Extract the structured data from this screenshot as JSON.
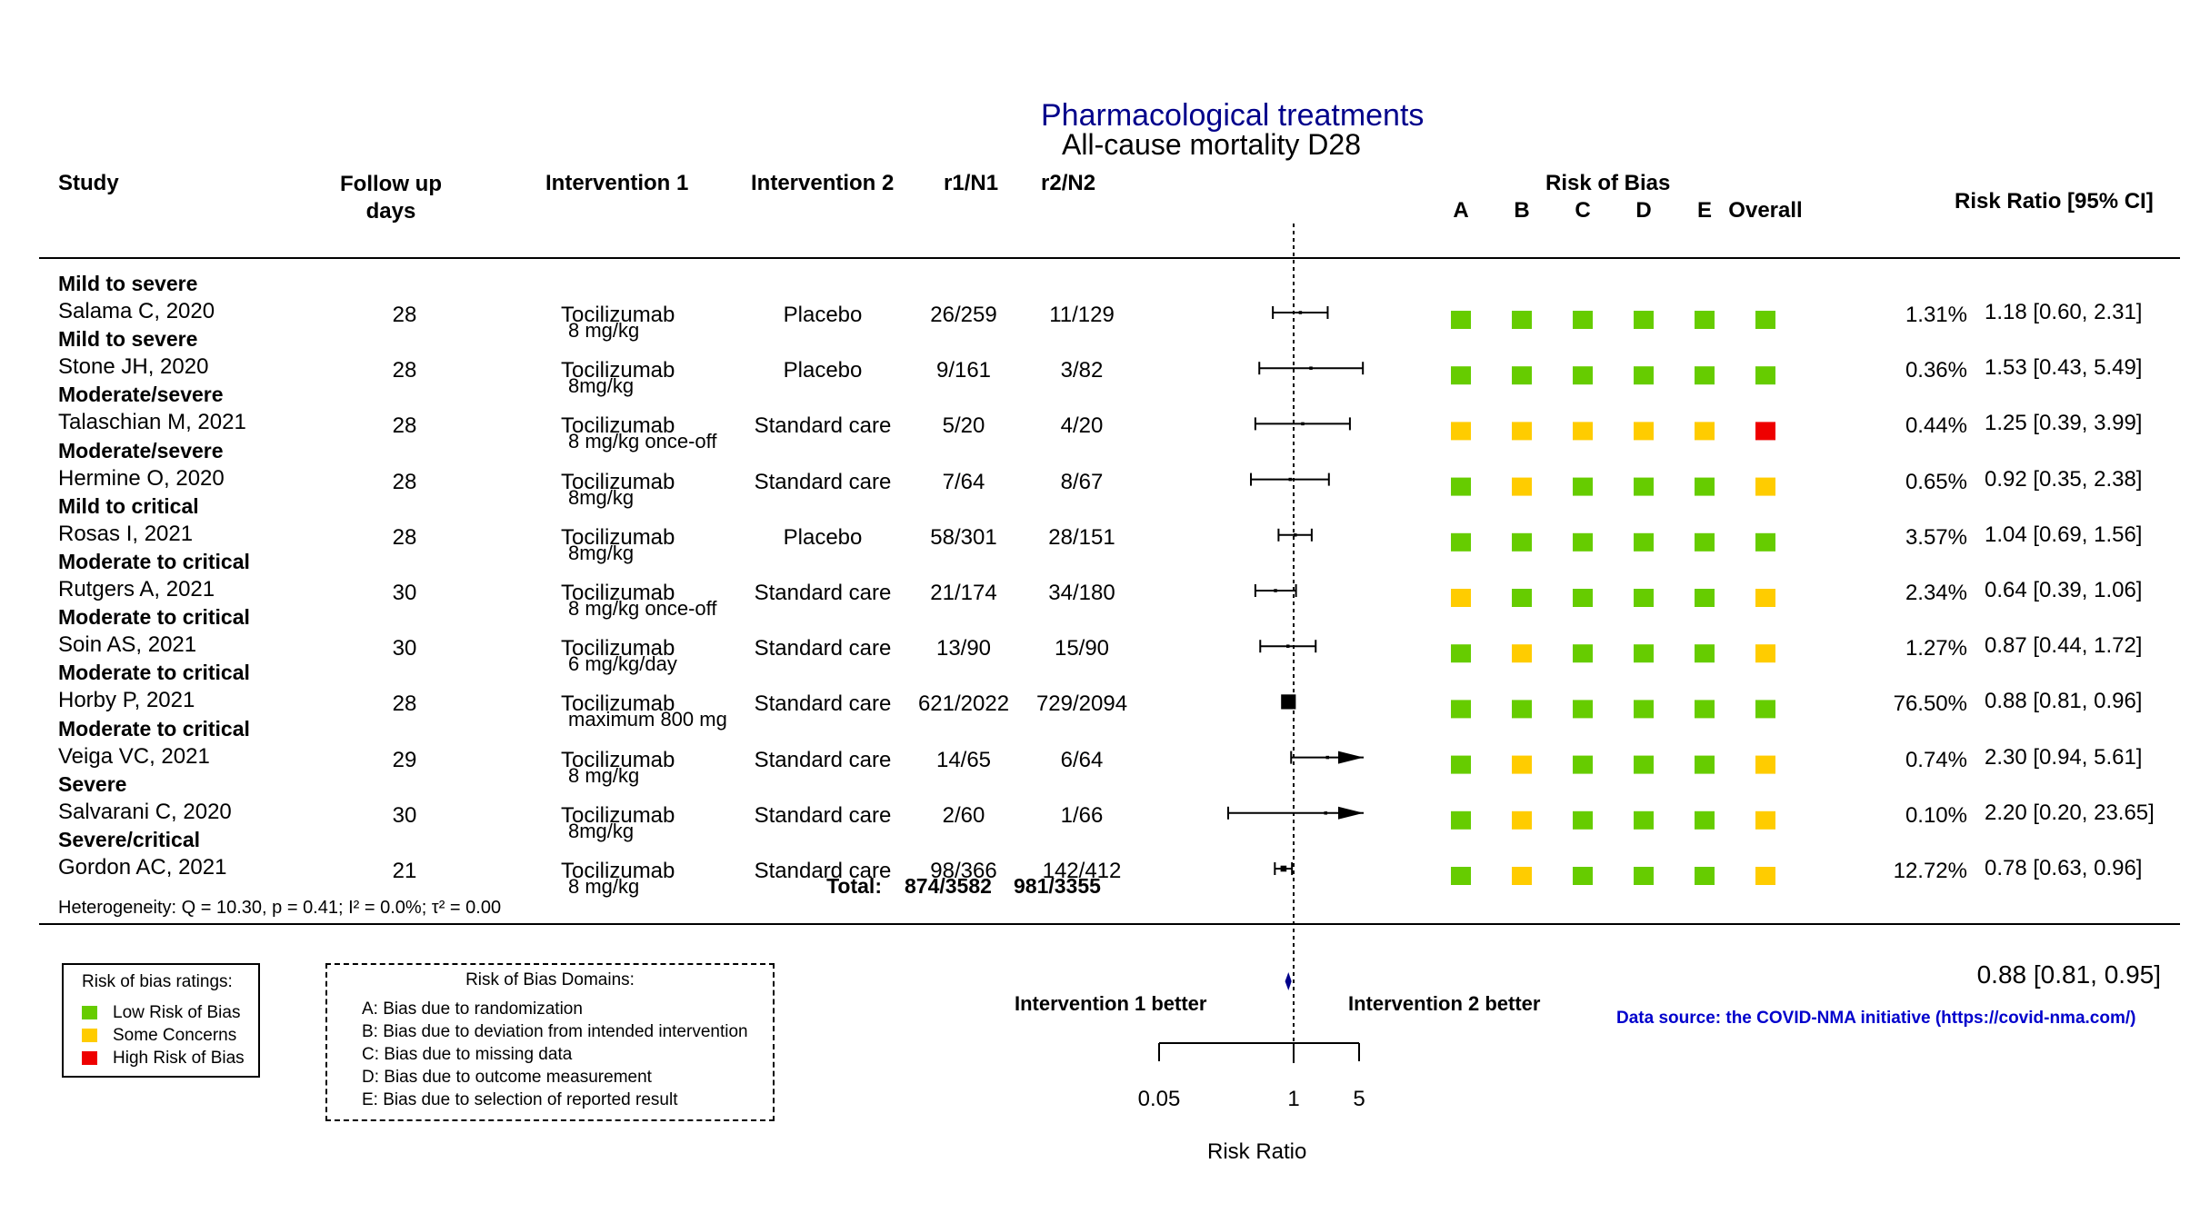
{
  "chart_data": {
    "type": "forest",
    "title": "Pharmacological treatments",
    "subtitle": "All-cause mortality D28",
    "columns": {
      "study": "Study",
      "followup": "Follow up\ndays",
      "int1": "Intervention 1",
      "int2": "Intervention 2",
      "r1": "r1/N1",
      "r2": "r2/N2",
      "rob": "Risk of Bias",
      "rob_domains": [
        "A",
        "B",
        "C",
        "D",
        "E",
        "Overall"
      ],
      "rr": "Risk Ratio [95% CI]"
    },
    "studies": [
      {
        "group": "Mild to severe",
        "study": "Salama C, 2020",
        "followup": "28",
        "int1": "Tocilizumab",
        "dose": "8 mg/kg",
        "int2": "Placebo",
        "r1": "26/259",
        "r2": "11/129",
        "rob": [
          "low",
          "low",
          "low",
          "low",
          "low",
          "low"
        ],
        "weight": "1.31%",
        "rr_text": "1.18 [0.60,  2.31]",
        "rr": 1.18,
        "lo": 0.6,
        "hi": 2.31
      },
      {
        "group": "Mild to severe",
        "study": "Stone JH, 2020",
        "followup": "28",
        "int1": "Tocilizumab",
        "dose": "8mg/kg",
        "int2": "Placebo",
        "r1": "9/161",
        "r2": "3/82",
        "rob": [
          "low",
          "low",
          "low",
          "low",
          "low",
          "low"
        ],
        "weight": "0.36%",
        "rr_text": "1.53 [0.43,  5.49]",
        "rr": 1.53,
        "lo": 0.43,
        "hi": 5.49
      },
      {
        "group": "Moderate/severe",
        "study": "Talaschian M, 2021",
        "followup": "28",
        "int1": "Tocilizumab",
        "dose": "8 mg/kg once-off",
        "int2": "Standard care",
        "r1": "5/20",
        "r2": "4/20",
        "rob": [
          "some",
          "some",
          "some",
          "some",
          "some",
          "high"
        ],
        "weight": "0.44%",
        "rr_text": "1.25 [0.39,  3.99]",
        "rr": 1.25,
        "lo": 0.39,
        "hi": 3.99
      },
      {
        "group": "Moderate/severe",
        "study": "Hermine O, 2020",
        "followup": "28",
        "int1": "Tocilizumab",
        "dose": "8mg/kg",
        "int2": "Standard care",
        "r1": "7/64",
        "r2": "8/67",
        "rob": [
          "low",
          "some",
          "low",
          "low",
          "low",
          "some"
        ],
        "weight": "0.65%",
        "rr_text": "0.92 [0.35,  2.38]",
        "rr": 0.92,
        "lo": 0.35,
        "hi": 2.38
      },
      {
        "group": "Mild to critical",
        "study": "Rosas I, 2021",
        "followup": "28",
        "int1": "Tocilizumab",
        "dose": "8mg/kg",
        "int2": "Placebo",
        "r1": "58/301",
        "r2": "28/151",
        "rob": [
          "low",
          "low",
          "low",
          "low",
          "low",
          "low"
        ],
        "weight": "3.57%",
        "rr_text": "1.04 [0.69,  1.56]",
        "rr": 1.04,
        "lo": 0.69,
        "hi": 1.56
      },
      {
        "group": "Moderate to critical",
        "study": "Rutgers A, 2021",
        "followup": "30",
        "int1": "Tocilizumab",
        "dose": "8 mg/kg once-off",
        "int2": "Standard care",
        "r1": "21/174",
        "r2": "34/180",
        "rob": [
          "some",
          "low",
          "low",
          "low",
          "low",
          "some"
        ],
        "weight": "2.34%",
        "rr_text": "0.64 [0.39,  1.06]",
        "rr": 0.64,
        "lo": 0.39,
        "hi": 1.06
      },
      {
        "group": "Moderate to critical",
        "study": "Soin AS, 2021",
        "followup": "30",
        "int1": "Tocilizumab",
        "dose": "6 mg/kg/day",
        "int2": "Standard care",
        "r1": "13/90",
        "r2": "15/90",
        "rob": [
          "low",
          "some",
          "low",
          "low",
          "low",
          "some"
        ],
        "weight": "1.27%",
        "rr_text": "0.87 [0.44,  1.72]",
        "rr": 0.87,
        "lo": 0.44,
        "hi": 1.72
      },
      {
        "group": "Moderate to critical",
        "study": "Horby P, 2021",
        "followup": "28",
        "int1": "Tocilizumab",
        "dose": "maximum 800 mg",
        "int2": "Standard care",
        "r1": "621/2022",
        "r2": "729/2094",
        "rob": [
          "low",
          "low",
          "low",
          "low",
          "low",
          "low"
        ],
        "weight": "76.50%",
        "rr_text": "0.88 [0.81,  0.96]",
        "rr": 0.88,
        "lo": 0.81,
        "hi": 0.96
      },
      {
        "group": "Moderate to critical",
        "study": "Veiga VC, 2021",
        "followup": "29",
        "int1": "Tocilizumab",
        "dose": "8 mg/kg",
        "int2": "Standard care",
        "r1": "14/65",
        "r2": "6/64",
        "rob": [
          "low",
          "some",
          "low",
          "low",
          "low",
          "some"
        ],
        "weight": "0.74%",
        "rr_text": "2.30 [0.94,  5.61]",
        "rr": 2.3,
        "lo": 0.94,
        "hi": 5.61
      },
      {
        "group": "Severe",
        "study": "Salvarani C, 2020",
        "followup": "30",
        "int1": "Tocilizumab",
        "dose": "8mg/kg",
        "int2": "Standard care",
        "r1": "2/60",
        "r2": "1/66",
        "rob": [
          "low",
          "some",
          "low",
          "low",
          "low",
          "some"
        ],
        "weight": "0.10%",
        "rr_text": "2.20 [0.20, 23.65]",
        "rr": 2.2,
        "lo": 0.2,
        "hi": 23.65
      },
      {
        "group": "Severe/critical",
        "study": "Gordon AC, 2021",
        "followup": "21",
        "int1": "Tocilizumab",
        "dose": "8 mg/kg",
        "int2": "Standard care",
        "r1": "98/366",
        "r2": "142/412",
        "rob": [
          "low",
          "some",
          "low",
          "low",
          "low",
          "some"
        ],
        "weight": "12.72%",
        "rr_text": "0.78 [0.63,  0.96]",
        "rr": 0.78,
        "lo": 0.63,
        "hi": 0.96
      }
    ],
    "total": {
      "label": "Total:",
      "r1": "874/3582",
      "r2": "981/3355"
    },
    "heterogeneity": "Heterogeneity: Q = 10.30, p = 0.41; I² = 0.0%; τ² = 0.00",
    "pooled": {
      "rr_text": "0.88 [0.81, 0.95]",
      "rr": 0.88,
      "lo": 0.81,
      "hi": 0.95
    },
    "x_axis": {
      "label": "Risk Ratio",
      "scale": "log",
      "ticks": [
        0.05,
        1,
        5
      ],
      "tick_labels": [
        "0.05",
        "1",
        "5"
      ],
      "left_label": "Intervention 1 better",
      "right_label": "Intervention 2 better"
    },
    "legend_ratings": {
      "title": "Risk of bias ratings:",
      "items": [
        {
          "label": "Low Risk of Bias",
          "color": "#66cc00"
        },
        {
          "label": "Some Concerns",
          "color": "#ffcc00"
        },
        {
          "label": "High Risk of Bias",
          "color": "#ee0000"
        }
      ]
    },
    "legend_domains": {
      "title": "Risk of Bias Domains:",
      "items": [
        "A: Bias due to randomization",
        "B: Bias due to deviation from intended intervention",
        "C: Bias due to missing data",
        "D: Bias due to outcome measurement",
        "E: Bias due to selection of reported result"
      ]
    },
    "source": "Data source: the COVID-NMA initiative (https://covid-nma.com/)",
    "colors": {
      "low": "#66cc00",
      "some": "#ffcc00",
      "high": "#ee0000",
      "title": "#00008b",
      "source": "#0000cc",
      "diamond": "#00008b"
    }
  }
}
